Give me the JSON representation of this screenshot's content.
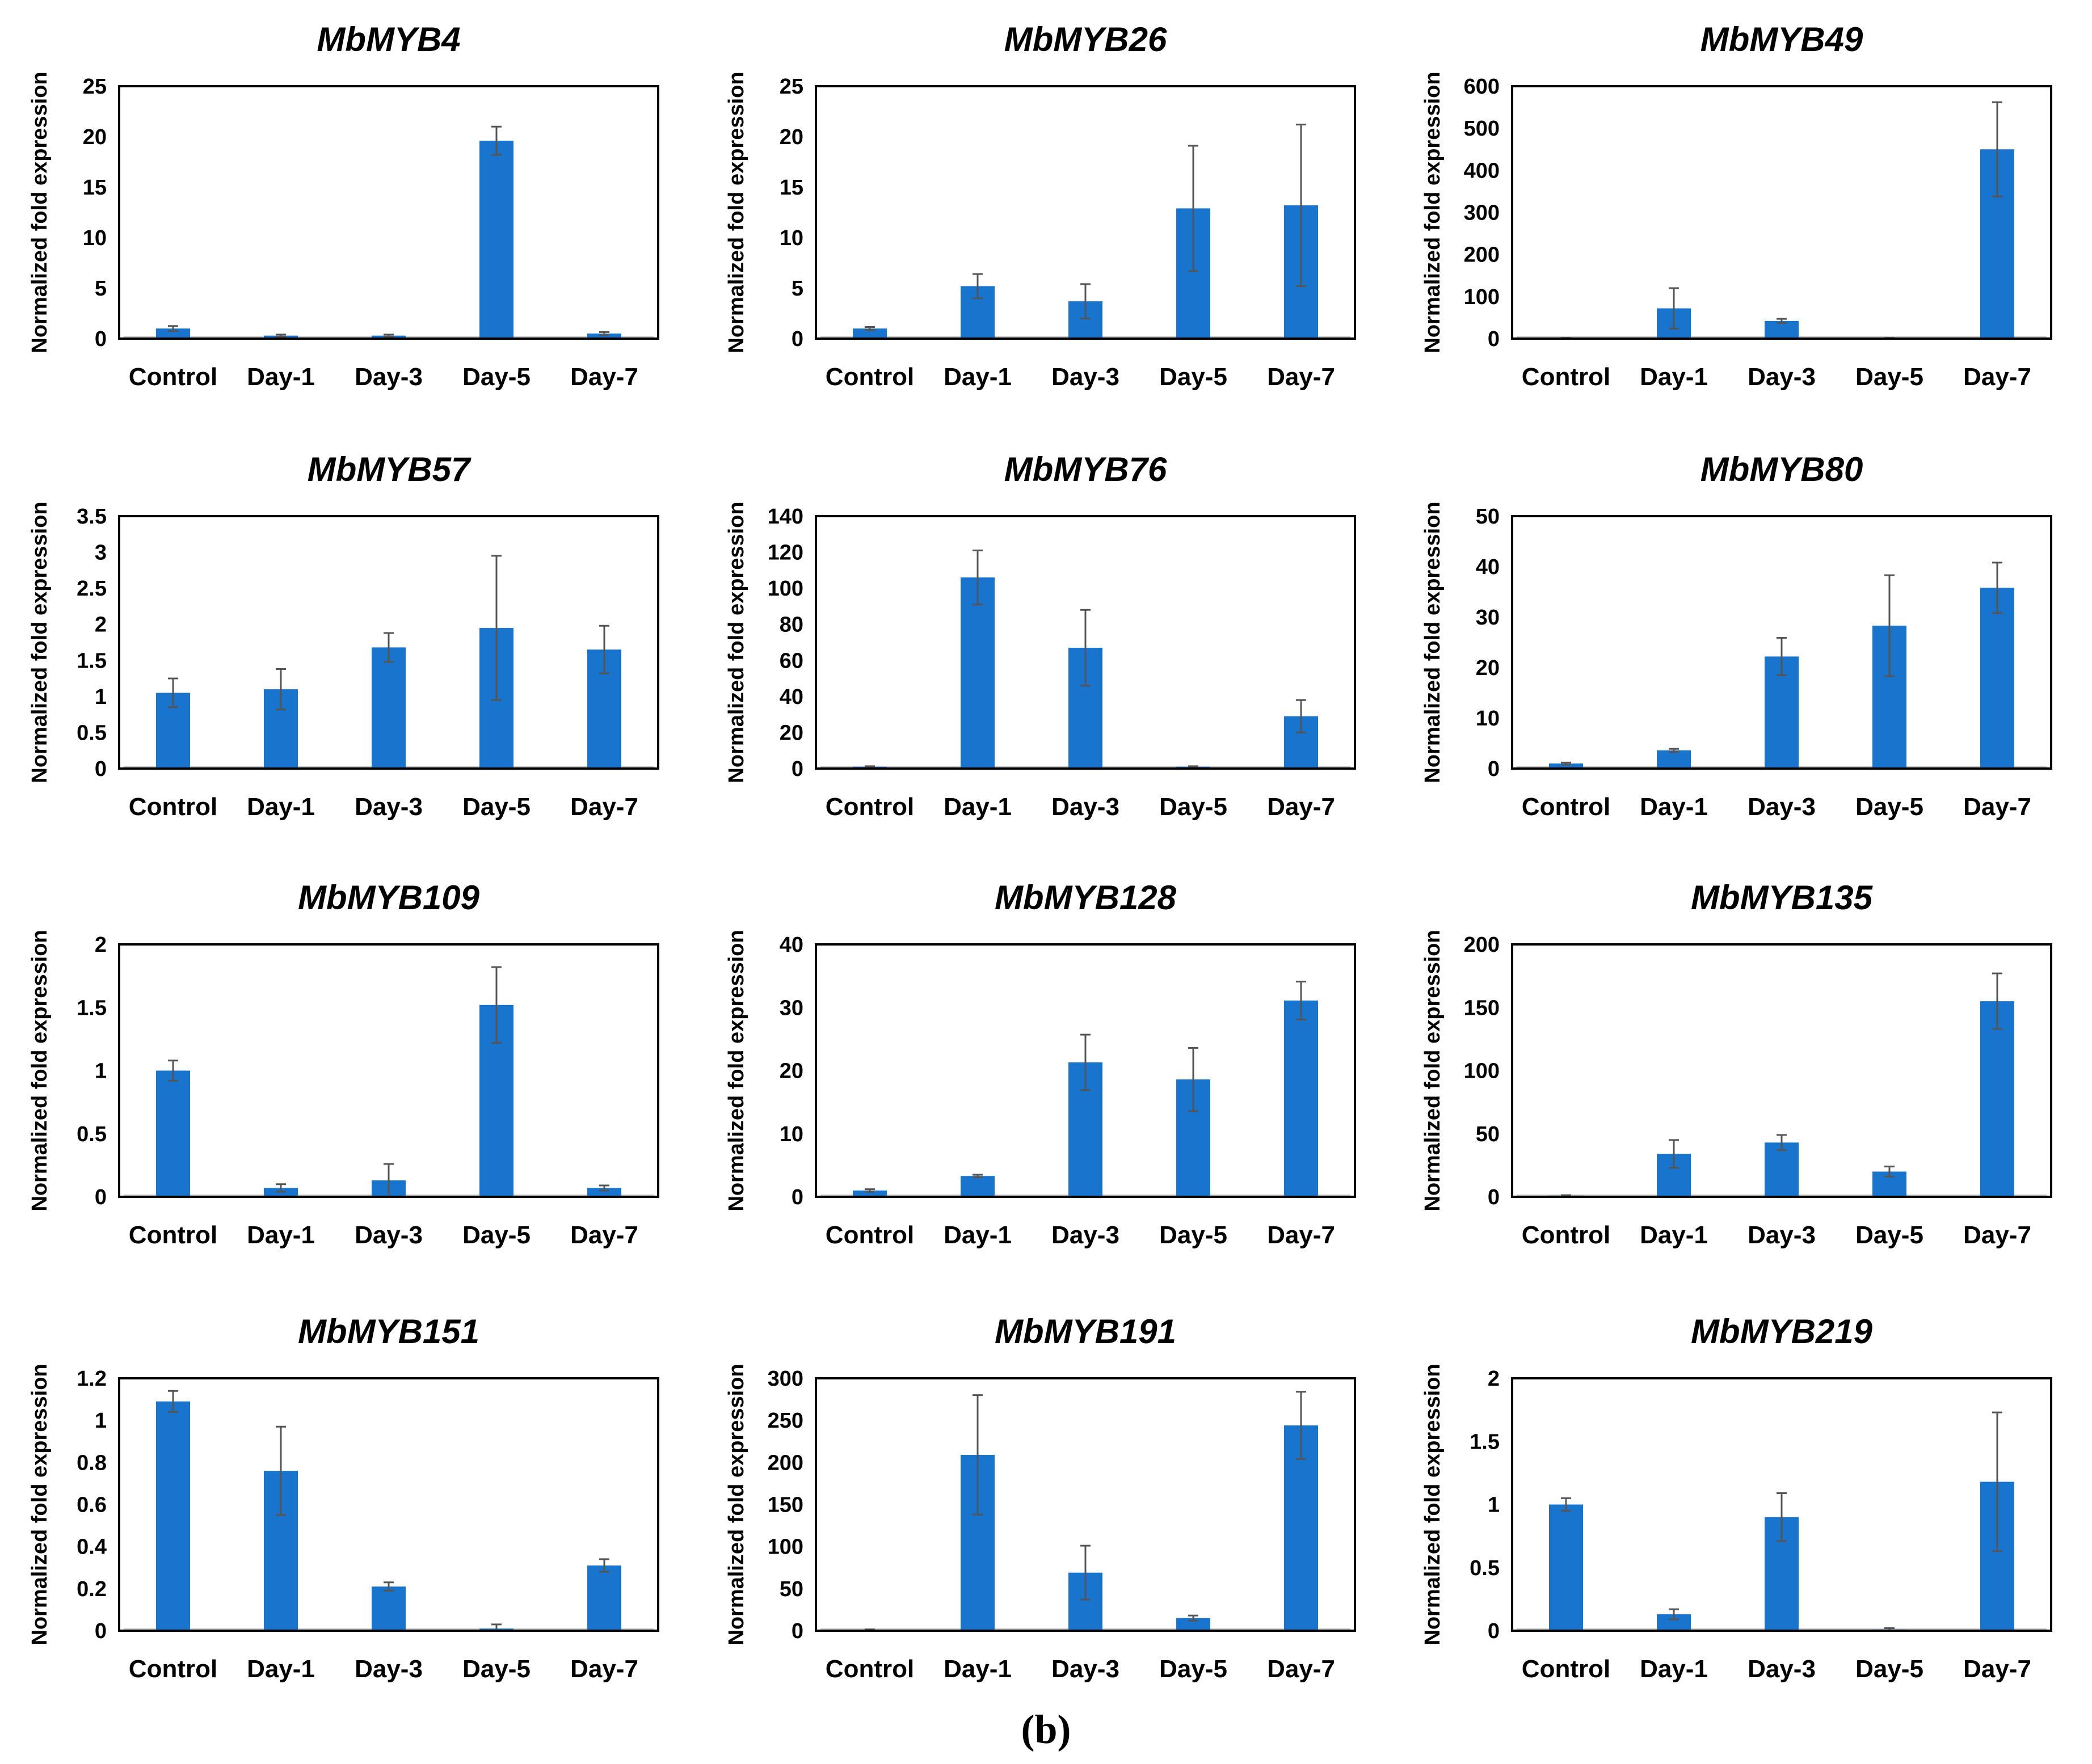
{
  "figure_label": "(b)",
  "style": {
    "bar_color": "#1874cd",
    "error_color": "#555555",
    "frame_color": "#000000",
    "baseline_color": "#c9c9c9"
  },
  "chart_data": [
    {
      "type": "bar",
      "title": "MbMYB4",
      "ylabel": "Normalized fold expression",
      "categories": [
        "Control",
        "Day-1",
        "Day-3",
        "Day-5",
        "Day-7"
      ],
      "values": [
        1.0,
        0.3,
        0.3,
        19.6,
        0.5
      ],
      "errors": [
        0.25,
        0.1,
        0.1,
        1.4,
        0.15
      ],
      "ylim": [
        0,
        25
      ],
      "yticks": [
        0,
        5,
        10,
        15,
        20,
        25
      ],
      "ytick_labels": [
        "0",
        "5",
        "10",
        "15",
        "20",
        "25"
      ]
    },
    {
      "type": "bar",
      "title": "MbMYB26",
      "ylabel": "Normalized fold expression",
      "categories": [
        "Control",
        "Day-1",
        "Day-3",
        "Day-5",
        "Day-7"
      ],
      "values": [
        1.0,
        5.2,
        3.7,
        12.9,
        13.2
      ],
      "errors": [
        0.15,
        1.2,
        1.7,
        6.2,
        8.0
      ],
      "ylim": [
        0,
        25
      ],
      "yticks": [
        0,
        5,
        10,
        15,
        20,
        25
      ],
      "ytick_labels": [
        "0",
        "5",
        "10",
        "15",
        "20",
        "25"
      ]
    },
    {
      "type": "bar",
      "title": "MbMYB49",
      "ylabel": "Normalized fold expression",
      "categories": [
        "Control",
        "Day-1",
        "Day-3",
        "Day-5",
        "Day-7"
      ],
      "values": [
        1,
        72,
        42,
        1,
        450
      ],
      "errors": [
        0.5,
        48,
        5,
        0.5,
        112
      ],
      "ylim": [
        0,
        600
      ],
      "yticks": [
        0,
        100,
        200,
        300,
        400,
        500,
        600
      ],
      "ytick_labels": [
        "0",
        "100",
        "200",
        "300",
        "400",
        "500",
        "600"
      ]
    },
    {
      "type": "bar",
      "title": "MbMYB57",
      "ylabel": "Normalized fold expression",
      "categories": [
        "Control",
        "Day-1",
        "Day-3",
        "Day-5",
        "Day-7"
      ],
      "values": [
        1.05,
        1.1,
        1.68,
        1.95,
        1.65
      ],
      "errors": [
        0.2,
        0.28,
        0.2,
        1.0,
        0.33
      ],
      "ylim": [
        0,
        3.5
      ],
      "yticks": [
        0,
        0.5,
        1,
        1.5,
        2,
        2.5,
        3,
        3.5
      ],
      "ytick_labels": [
        "0",
        "0.5",
        "1",
        "1.5",
        "2",
        "2.5",
        "3",
        "3.5"
      ]
    },
    {
      "type": "bar",
      "title": "MbMYB76",
      "ylabel": "Normalized fold expression",
      "categories": [
        "Control",
        "Day-1",
        "Day-3",
        "Day-5",
        "Day-7"
      ],
      "values": [
        1,
        106,
        67,
        1,
        29
      ],
      "errors": [
        0.3,
        15,
        21,
        0.3,
        9
      ],
      "ylim": [
        0,
        140
      ],
      "yticks": [
        0,
        20,
        40,
        60,
        80,
        100,
        120,
        140
      ],
      "ytick_labels": [
        "0",
        "20",
        "40",
        "60",
        "80",
        "100",
        "120",
        "140"
      ]
    },
    {
      "type": "bar",
      "title": "MbMYB80",
      "ylabel": "Normalized fold expression",
      "categories": [
        "Control",
        "Day-1",
        "Day-3",
        "Day-5",
        "Day-7"
      ],
      "values": [
        1.0,
        3.6,
        22.2,
        28.3,
        35.8
      ],
      "errors": [
        0.2,
        0.3,
        3.7,
        10.0,
        5.0
      ],
      "ylim": [
        0,
        50
      ],
      "yticks": [
        0,
        10,
        20,
        30,
        40,
        50
      ],
      "ytick_labels": [
        "0",
        "10",
        "20",
        "30",
        "40",
        "50"
      ]
    },
    {
      "type": "bar",
      "title": "MbMYB109",
      "ylabel": "Normalized fold expression",
      "categories": [
        "Control",
        "Day-1",
        "Day-3",
        "Day-5",
        "Day-7"
      ],
      "values": [
        1.0,
        0.07,
        0.13,
        1.52,
        0.07
      ],
      "errors": [
        0.08,
        0.03,
        0.13,
        0.3,
        0.02
      ],
      "ylim": [
        0,
        2
      ],
      "yticks": [
        0,
        0.5,
        1,
        1.5,
        2
      ],
      "ytick_labels": [
        "0",
        "0.5",
        "1",
        "1.5",
        "2"
      ]
    },
    {
      "type": "bar",
      "title": "MbMYB128",
      "ylabel": "Normalized fold expression",
      "categories": [
        "Control",
        "Day-1",
        "Day-3",
        "Day-5",
        "Day-7"
      ],
      "values": [
        1.0,
        3.3,
        21.3,
        18.6,
        31.1
      ],
      "errors": [
        0.2,
        0.2,
        4.4,
        5.0,
        3.0
      ],
      "ylim": [
        0,
        40
      ],
      "yticks": [
        0,
        10,
        20,
        30,
        40
      ],
      "ytick_labels": [
        "0",
        "10",
        "20",
        "30",
        "40"
      ]
    },
    {
      "type": "bar",
      "title": "MbMYB135",
      "ylabel": "Normalized fold expression",
      "categories": [
        "Control",
        "Day-1",
        "Day-3",
        "Day-5",
        "Day-7"
      ],
      "values": [
        1,
        34,
        43,
        20,
        155
      ],
      "errors": [
        0.3,
        11,
        6,
        4,
        22
      ],
      "ylim": [
        0,
        200
      ],
      "yticks": [
        0,
        50,
        100,
        150,
        200
      ],
      "ytick_labels": [
        "0",
        "50",
        "100",
        "150",
        "200"
      ]
    },
    {
      "type": "bar",
      "title": "MbMYB151",
      "ylabel": "Normalized fold expression",
      "categories": [
        "Control",
        "Day-1",
        "Day-3",
        "Day-5",
        "Day-7"
      ],
      "values": [
        1.09,
        0.76,
        0.21,
        0.01,
        0.31
      ],
      "errors": [
        0.05,
        0.21,
        0.02,
        0.02,
        0.03
      ],
      "ylim": [
        0,
        1.2
      ],
      "yticks": [
        0,
        0.2,
        0.4,
        0.6,
        0.8,
        1,
        1.2
      ],
      "ytick_labels": [
        "0",
        "0.2",
        "0.4",
        "0.6",
        "0.8",
        "1",
        "1.2"
      ]
    },
    {
      "type": "bar",
      "title": "MbMYB191",
      "ylabel": "Normalized fold expression",
      "categories": [
        "Control",
        "Day-1",
        "Day-3",
        "Day-5",
        "Day-7"
      ],
      "values": [
        1,
        209,
        69,
        15,
        244
      ],
      "errors": [
        0.5,
        71,
        32,
        3,
        40
      ],
      "ylim": [
        0,
        300
      ],
      "yticks": [
        0,
        50,
        100,
        150,
        200,
        250,
        300
      ],
      "ytick_labels": [
        "0",
        "50",
        "100",
        "150",
        "200",
        "250",
        "300"
      ]
    },
    {
      "type": "bar",
      "title": "MbMYB219",
      "ylabel": "Normalized fold expression",
      "categories": [
        "Control",
        "Day-1",
        "Day-3",
        "Day-5",
        "Day-7"
      ],
      "values": [
        1.0,
        0.13,
        0.9,
        0.01,
        1.18
      ],
      "errors": [
        0.05,
        0.04,
        0.19,
        0.01,
        0.55
      ],
      "ylim": [
        0,
        2
      ],
      "yticks": [
        0,
        0.5,
        1,
        1.5,
        2
      ],
      "ytick_labels": [
        "0",
        "0.5",
        "1",
        "1.5",
        "2"
      ]
    }
  ]
}
